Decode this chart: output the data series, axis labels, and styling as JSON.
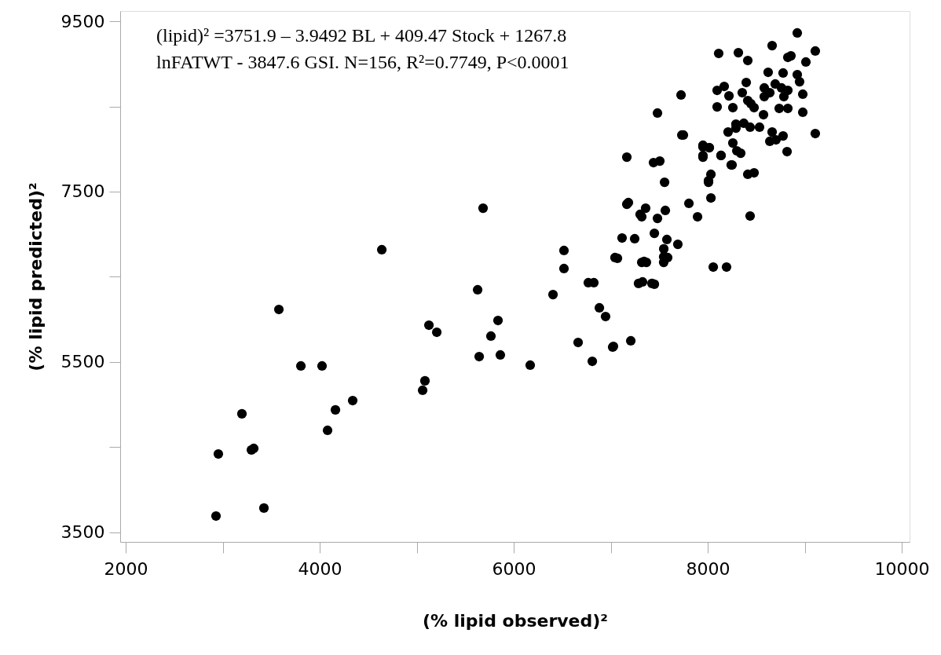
{
  "chart_data": {
    "type": "scatter",
    "xlabel": "(% lipid observed)²",
    "ylabel": "(% lipid predicted)²",
    "annotations": [
      "(lipid)²  =3751.9 – 3.9492 BL + 409.47 Stock + 1267.8",
      "lnFATWT - 3847.6 GSI.  N=156, R²=0.7749, P<0.0001"
    ],
    "xlim": [
      1943,
      10081
    ],
    "ylim": [
      3389,
      9620
    ],
    "xticks": [
      2000,
      {
        "value": 3000,
        "label": null
      },
      4000,
      {
        "value": 5000,
        "label": null
      },
      6000,
      {
        "value": 7000,
        "label": null
      },
      8000,
      {
        "value": 9000,
        "label": null
      },
      10000
    ],
    "yticks": [
      3500,
      {
        "value": 4500,
        "label": null
      },
      5500,
      {
        "value": 6500,
        "label": null
      },
      7500,
      {
        "value": 8500,
        "label": null
      },
      9500
    ],
    "grid": false,
    "marker": "circle",
    "series": [
      {
        "color": "#000000",
        "x": [
          2931,
          2955,
          3425,
          3198,
          3296,
          3320,
          3579,
          3806,
          4024,
          4081,
          4162,
          4340,
          4640,
          5061,
          5085,
          5126,
          5207,
          5644,
          5628,
          5838,
          5862,
          5765,
          5684,
          6170,
          6405,
          6518,
          6518,
          6664,
          6769,
          6810,
          6883,
          6947,
          7028,
          7044,
          7166,
          7441,
          7506,
          7555,
          7166,
          7360,
          7320,
          7482,
          7563,
          7806,
          7895,
          8008,
          8033,
          8033,
          7749,
          7951,
          8016,
          7951,
          8137,
          8242,
          8291,
          7117,
          7247,
          7450,
          7579,
          7692,
          7069,
          7320,
          7368,
          7546,
          7546,
          7425,
          7328,
          7450,
          6826,
          7207,
          7020,
          8057,
          8194,
          7547,
          7587,
          7344,
          7287,
          8113,
          8316,
          8413,
          8664,
          8923,
          9109,
          9012,
          8826,
          8858,
          8623,
          8777,
          8923,
          8947,
          8397,
          8097,
          8170,
          7725,
          7482,
          8219,
          8356,
          8413,
          8583,
          8640,
          8696,
          8761,
          8826,
          8980,
          8785,
          8583,
          8097,
          8259,
          8478,
          8445,
          8575,
          8737,
          8826,
          8980,
          7733,
          8291,
          8372,
          8437,
          8534,
          8210,
          8664,
          8777,
          8640,
          9109,
          8259,
          8300,
          8340,
          8704,
          8818,
          7951,
          8016,
          7951,
          8137,
          8251,
          8413,
          8478,
          8008,
          8437,
          7182,
          7303
        ],
        "values": [
          3693,
          4421,
          3786,
          4892,
          4468,
          4486,
          6117,
          5454,
          5454,
          4698,
          4938,
          5048,
          6818,
          5168,
          5279,
          5933,
          5850,
          5564,
          6348,
          5988,
          5583,
          5804,
          7306,
          5463,
          6292,
          6597,
          6809,
          5730,
          6431,
          5509,
          6136,
          6034,
          5684,
          6726,
          7905,
          7841,
          7859,
          7610,
          7352,
          7306,
          7205,
          7186,
          7279,
          7362,
          7205,
          7629,
          7703,
          7426,
          8164,
          8044,
          8016,
          7905,
          7924,
          7813,
          8246,
          6956,
          6947,
          7011,
          6938,
          6882,
          6717,
          6670,
          6670,
          6670,
          6735,
          6422,
          6440,
          6413,
          6431,
          5749,
          5675,
          6615,
          6615,
          6828,
          6726,
          6680,
          6422,
          9122,
          9131,
          9039,
          9214,
          9362,
          9150,
          9021,
          9076,
          9094,
          8901,
          8892,
          8873,
          8790,
          8781,
          8689,
          8735,
          8634,
          8422,
          8624,
          8661,
          8569,
          8717,
          8661,
          8763,
          8717,
          8689,
          8643,
          8615,
          8615,
          8495,
          8486,
          8486,
          8532,
          8403,
          8477,
          8477,
          8431,
          8164,
          8292,
          8302,
          8256,
          8256,
          8200,
          8200,
          8154,
          8090,
          8182,
          8071,
          7979,
          7951,
          8108,
          7970,
          8025,
          8016,
          7924,
          7924,
          7813,
          7703,
          7721,
          7610,
          7214,
          7371,
          7233
        ]
      }
    ]
  }
}
